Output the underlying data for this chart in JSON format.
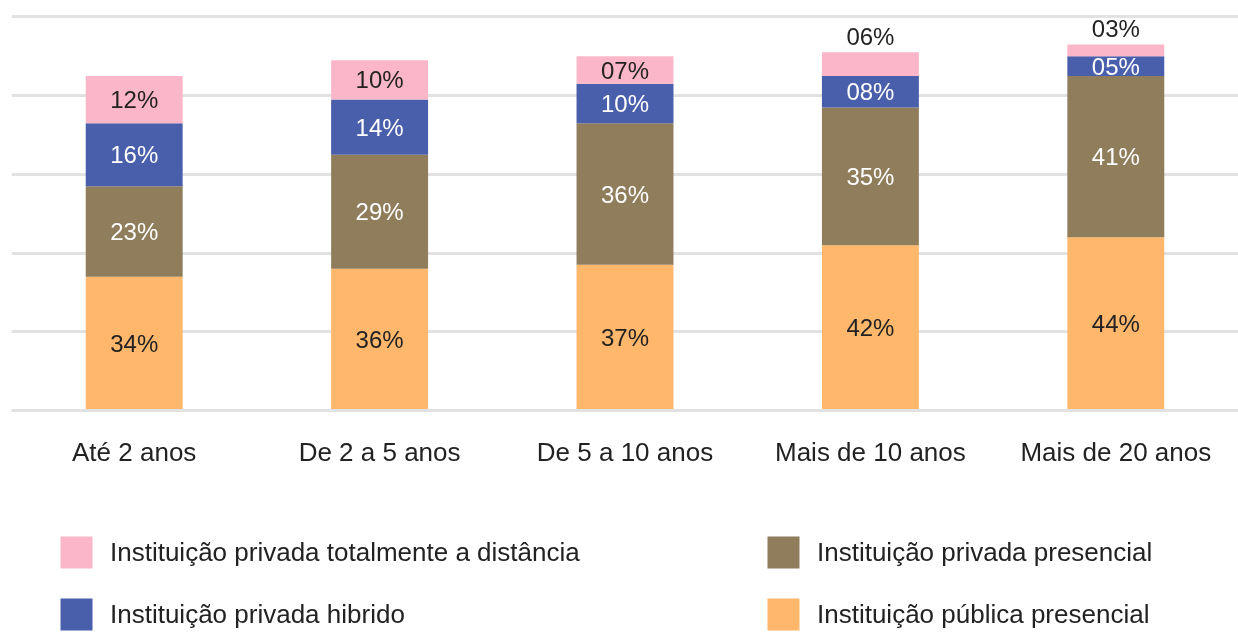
{
  "chart_data": {
    "type": "bar",
    "stacked": true,
    "categories": [
      "Até 2 anos",
      "De 2 a 5 anos",
      "De 5 a 10 anos",
      "Mais de 10 anos",
      "Mais de 20 anos"
    ],
    "series": [
      {
        "name": "Instituição pública presencial",
        "color": "#ffb76c",
        "values": [
          34,
          36,
          37,
          42,
          44
        ],
        "value_labels": [
          "34%",
          "36%",
          "37%",
          "42%",
          "44%"
        ]
      },
      {
        "name": "Instituição privada presencial",
        "color": "#8f7d5b",
        "values": [
          23,
          29,
          36,
          35,
          41
        ],
        "value_labels": [
          "23%",
          "29%",
          "36%",
          "35%",
          "41%"
        ]
      },
      {
        "name": "Instituição privada hibrido",
        "color": "#4a5fac",
        "values": [
          16,
          14,
          10,
          8,
          5
        ],
        "value_labels": [
          "16%",
          "14%",
          "10%",
          "08%",
          "05%"
        ]
      },
      {
        "name": "Instituição privada totalmente a distância",
        "color": "#fbb7c9",
        "values": [
          12,
          10,
          7,
          6,
          3
        ],
        "value_labels": [
          "12%",
          "10%",
          "07%",
          "06%",
          "03%"
        ]
      }
    ],
    "grid": "y",
    "tick_labels": "x",
    "legend": "bottom"
  }
}
